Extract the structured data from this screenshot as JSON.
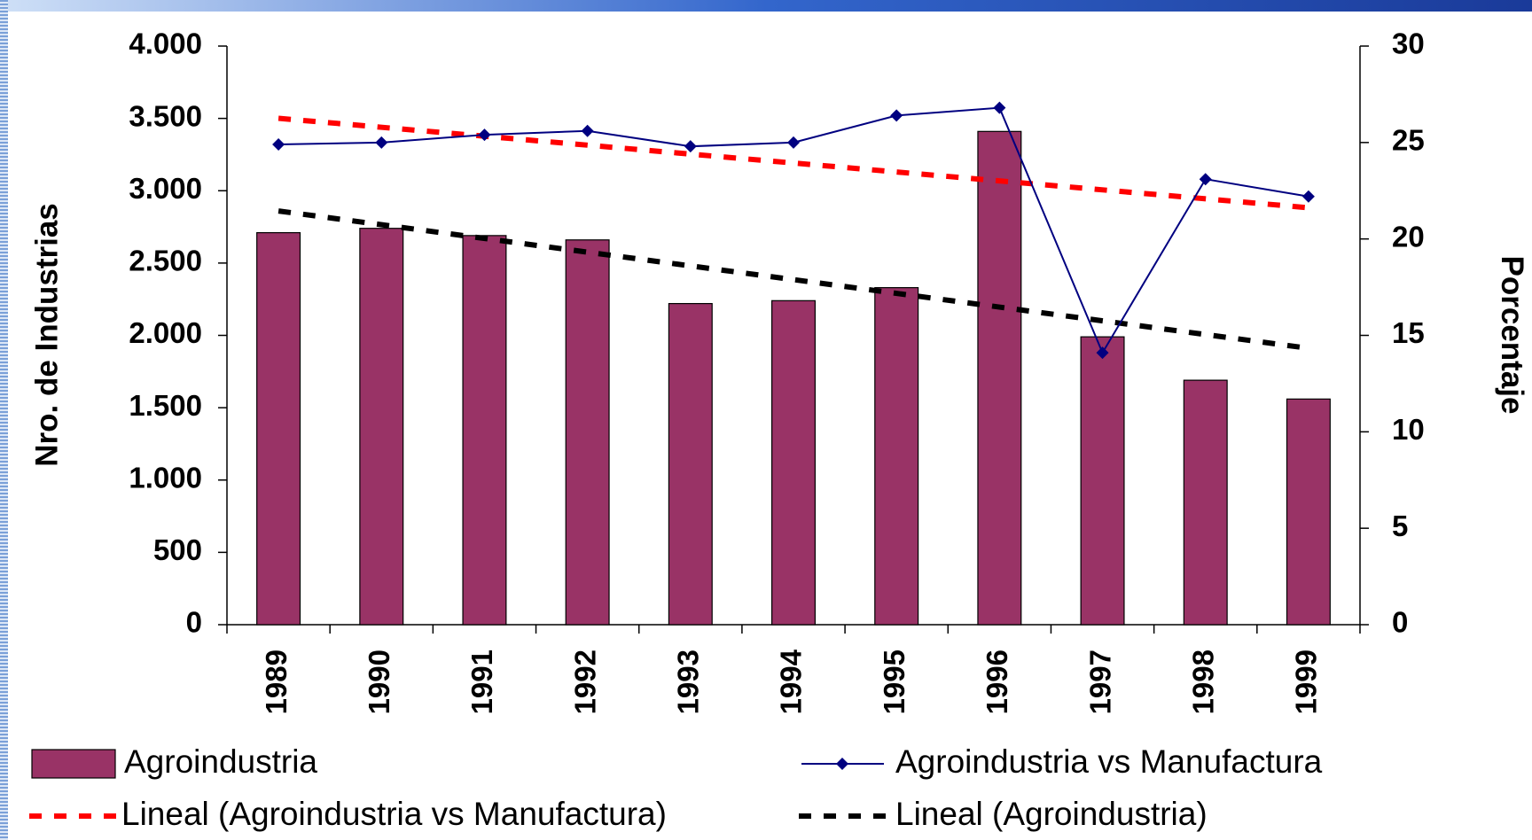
{
  "chart_data": {
    "type": "bar-line",
    "y_label": "Nro. de Industrias",
    "y2_label": "Porcentaje",
    "categories": [
      "1989",
      "1990",
      "1991",
      "1992",
      "1993",
      "1994",
      "1995",
      "1996",
      "1997",
      "1998",
      "1999"
    ],
    "series": [
      {
        "name": "Agroindustria",
        "type": "bar",
        "color": "#993366",
        "values": [
          2710,
          2740,
          2690,
          2660,
          2220,
          2240,
          2330,
          3410,
          1990,
          1690,
          1560
        ]
      },
      {
        "name": "Agroindustria vs Manufactura",
        "type": "line",
        "axis": "y2",
        "color": "#000080",
        "values": [
          24.9,
          25.0,
          25.4,
          25.6,
          24.8,
          25.0,
          26.4,
          26.8,
          14.1,
          23.1,
          22.2
        ]
      }
    ],
    "trendlines": [
      {
        "name": "Lineal (Agroindustria vs Manufactura)",
        "color": "#ff0000"
      },
      {
        "name": "Lineal (Agroindustria)",
        "color": "#000000"
      }
    ],
    "ylim": [
      0,
      4000
    ],
    "yticks": [
      0,
      {
        "value": 500,
        "label": "500"
      },
      {
        "value": 1000,
        "label": "1.000"
      },
      {
        "value": 1500,
        "label": "1.500"
      },
      {
        "value": 2000,
        "label": "2.000"
      },
      {
        "value": 2500,
        "label": "2.500"
      },
      {
        "value": 3000,
        "label": "3.000"
      },
      {
        "value": 3500,
        "label": "3.500"
      },
      {
        "value": 4000,
        "label": "4.000"
      }
    ],
    "y2lim": [
      0,
      30
    ],
    "y2ticks": [
      0,
      5,
      10,
      15,
      20,
      25,
      30
    ]
  }
}
